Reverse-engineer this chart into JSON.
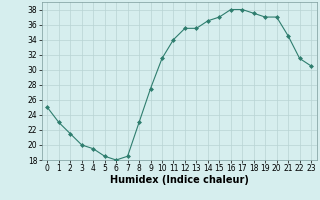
{
  "x": [
    0,
    1,
    2,
    3,
    4,
    5,
    6,
    7,
    8,
    9,
    10,
    11,
    12,
    13,
    14,
    15,
    16,
    17,
    18,
    19,
    20,
    21,
    22,
    23
  ],
  "y": [
    25,
    23,
    21.5,
    20,
    19.5,
    18.5,
    18,
    18.5,
    23,
    27.5,
    31.5,
    34,
    35.5,
    35.5,
    36.5,
    37,
    38,
    38,
    37.5,
    37,
    37,
    34.5,
    31.5,
    30.5
  ],
  "line_color": "#2e7d6e",
  "marker": "D",
  "marker_size": 2,
  "bg_color": "#d6eeee",
  "grid_color": "#b8d4d4",
  "xlabel": "Humidex (Indice chaleur)",
  "ylim": [
    18,
    39
  ],
  "xlim": [
    -0.5,
    23.5
  ],
  "yticks": [
    18,
    20,
    22,
    24,
    26,
    28,
    30,
    32,
    34,
    36,
    38
  ],
  "xticks": [
    0,
    1,
    2,
    3,
    4,
    5,
    6,
    7,
    8,
    9,
    10,
    11,
    12,
    13,
    14,
    15,
    16,
    17,
    18,
    19,
    20,
    21,
    22,
    23
  ],
  "tick_fontsize": 5.5,
  "xlabel_fontsize": 7
}
